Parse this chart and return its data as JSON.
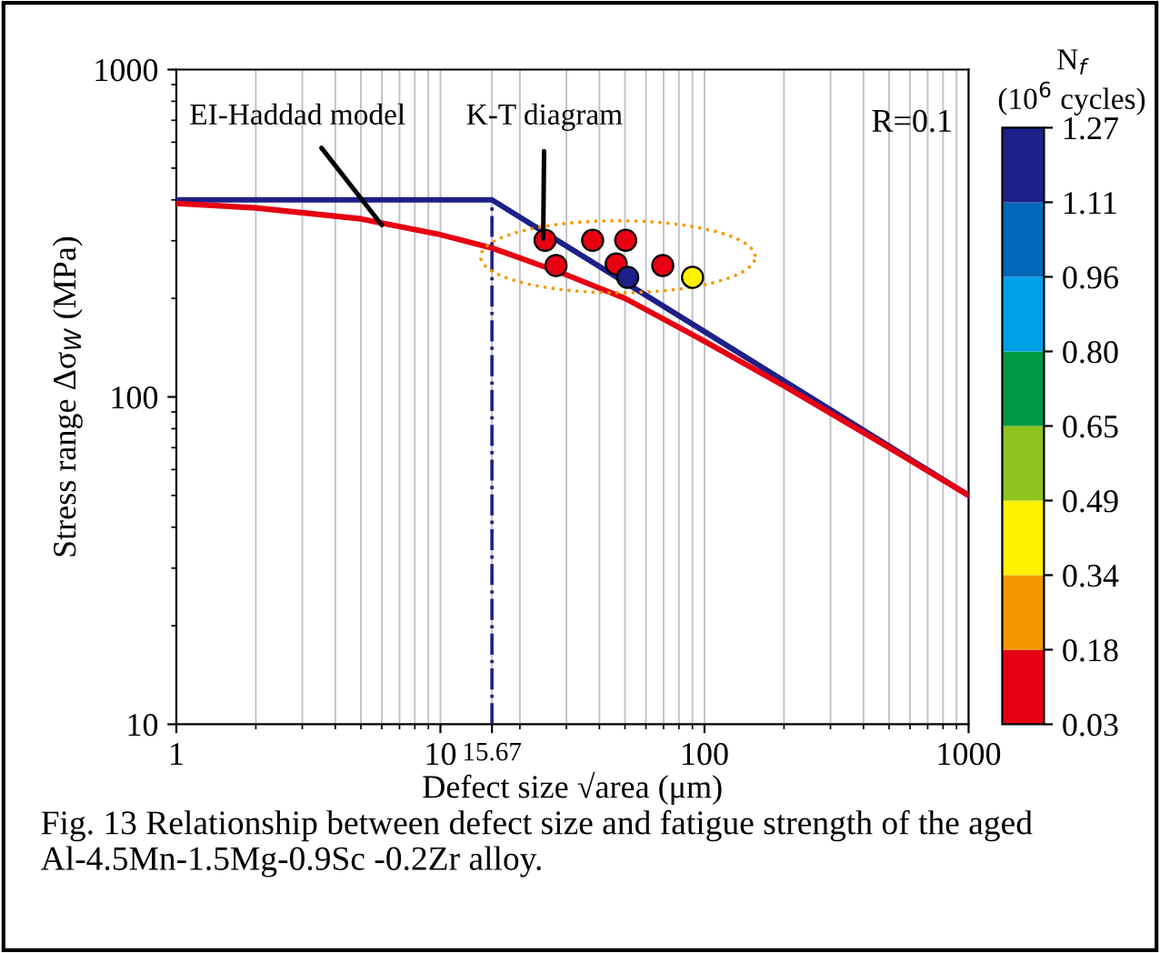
{
  "chart_data": {
    "type": "line",
    "xlabel": "Defect size √area (μm)",
    "ylabel": "Stress range Δσ$_{W}$ (MPa)",
    "clabel": "N$_{f}$\n(10$^{6}$ cycles)",
    "log": "xy",
    "xlim": [
      1,
      1000
    ],
    "ylim": [
      10,
      1000
    ],
    "xticks": [
      1,
      10,
      {
        "value": 15.67,
        "label": "15.67"
      },
      100,
      1000
    ],
    "yticks": [
      10,
      100,
      1000
    ],
    "grid": "x",
    "clim": [
      0.03,
      1.27
    ],
    "cticks": [
      0.03,
      0.18,
      0.34,
      0.49,
      0.65,
      {
        "value": 0.8,
        "label": "0.80"
      },
      0.96,
      1.11,
      1.27
    ],
    "colors": [
      "#e60012",
      "#f39800",
      "#fff100",
      "#8fc31f",
      "#009944",
      "#00a0e9",
      "#0068b7",
      "#1d2088"
    ],
    "series": [
      {
        "color": "#1d2088",
        "x": [
          1,
          15.67,
          1000
        ],
        "values": [
          400,
          400,
          50
        ]
      },
      {
        "color": "#e60012",
        "x": [
          1,
          2,
          5,
          10,
          15.67,
          20,
          30,
          50,
          100,
          200,
          500,
          1000
        ],
        "values": [
          390,
          378,
          350,
          313,
          285,
          266,
          236,
          200,
          148,
          108,
          70,
          50
        ]
      },
      {
        "color": "#1d2088",
        "line_style": "dashdot",
        "x": [
          15.67,
          15.67
        ],
        "values": [
          10,
          400
        ]
      },
      {
        "type": "scatter",
        "marker": "circle",
        "x": [
          24.9,
          27.4,
          37.7,
          50.3,
          46.3,
          69.5,
          51.2,
          90.1
        ],
        "values": [
          301,
          252,
          301,
          301,
          255,
          252,
          232,
          232
        ],
        "colors": [
          "#e60012",
          "#e60012",
          "#e60012",
          "#e60012",
          "#e60012",
          "#e60012",
          "#1d2088",
          "#fff100"
        ]
      }
    ],
    "annotations": [
      {
        "text": "EI-Haddad model",
        "x": 6,
        "y": 335
      },
      {
        "text": "K-T diagram",
        "x": 24.5,
        "y": 305
      },
      "R=0.1",
      "Fig. 13 Relationship between defect size and fatigue strength of the aged Al-4.5Mn-1.5Mg-0.9Sc -0.2Zr alloy."
    ]
  }
}
